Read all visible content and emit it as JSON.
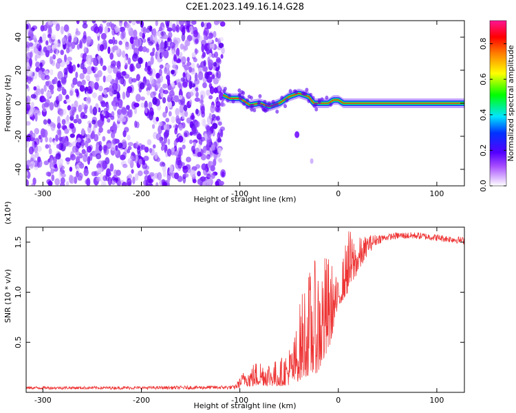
{
  "title": "C2E1.2023.149.16.14.G28",
  "chart_data": [
    {
      "type": "heatmap",
      "xlabel": "Height of straight line (km)",
      "ylabel": "Frequency (Hz)",
      "xlim": [
        -317,
        128
      ],
      "ylim": [
        -50,
        50
      ],
      "x_ticks": [
        -300,
        -200,
        -100,
        0,
        100
      ],
      "y_ticks": [
        -40,
        -20,
        0,
        20,
        40
      ],
      "colorbar": {
        "label": "Normalized spectral amplitude",
        "range": [
          0.0,
          0.93
        ],
        "ticks": [
          0.0,
          0.2,
          0.4,
          0.6,
          0.8
        ]
      },
      "noise_region_x": [
        -317,
        -117
      ],
      "signal_trace": {
        "x": [
          -117,
          -110,
          -100,
          -90,
          -80,
          -70,
          -60,
          -50,
          -40,
          -30,
          -25,
          -20,
          -10,
          -5,
          0,
          5,
          10,
          20,
          40,
          60,
          80,
          100,
          128
        ],
        "frequency": [
          5,
          3,
          3,
          -1,
          0,
          -2,
          0,
          4,
          6,
          4,
          0,
          0,
          0,
          2,
          2,
          0,
          0,
          0,
          0,
          0,
          0,
          0,
          0
        ],
        "peak_amplitude": [
          0.35,
          0.4,
          0.45,
          0.5,
          0.5,
          0.45,
          0.5,
          0.55,
          0.6,
          0.6,
          0.7,
          0.75,
          0.8,
          0.8,
          0.85,
          0.85,
          0.85,
          0.85,
          0.85,
          0.85,
          0.85,
          0.85,
          0.85
        ]
      },
      "isolated_features": [
        {
          "x": -42,
          "frequency": -19
        },
        {
          "x": -27,
          "frequency": -35
        }
      ]
    },
    {
      "type": "line",
      "xlabel": "Height of straight line (km)",
      "ylabel": "SNR (10 * v/v)",
      "y_scale_label": "(x10⁴)",
      "xlim": [
        -317,
        128
      ],
      "ylim": [
        0,
        1.65
      ],
      "x_ticks": [
        -300,
        -200,
        -100,
        0,
        100
      ],
      "y_ticks": [
        0.5,
        1.0,
        1.5
      ],
      "y_tick_labels": [
        "0.5",
        "1.0",
        "1.5"
      ],
      "series_color": "#ee3333",
      "envelope": {
        "x": [
          -317,
          -200,
          -105,
          -95,
          -80,
          -60,
          -45,
          -35,
          -20,
          -10,
          0,
          10,
          20,
          30,
          40,
          50,
          60,
          80,
          100,
          128
        ],
        "low": [
          0.03,
          0.03,
          0.03,
          0.05,
          0.07,
          0.06,
          0.08,
          0.15,
          0.2,
          0.4,
          0.85,
          1.0,
          1.2,
          1.38,
          1.48,
          1.52,
          1.53,
          1.53,
          1.51,
          1.48
        ],
        "high": [
          0.06,
          0.06,
          0.07,
          0.23,
          0.35,
          0.32,
          0.55,
          1.15,
          1.38,
          1.4,
          1.1,
          1.65,
          1.55,
          1.57,
          1.58,
          1.58,
          1.6,
          1.6,
          1.58,
          1.55
        ]
      }
    }
  ]
}
